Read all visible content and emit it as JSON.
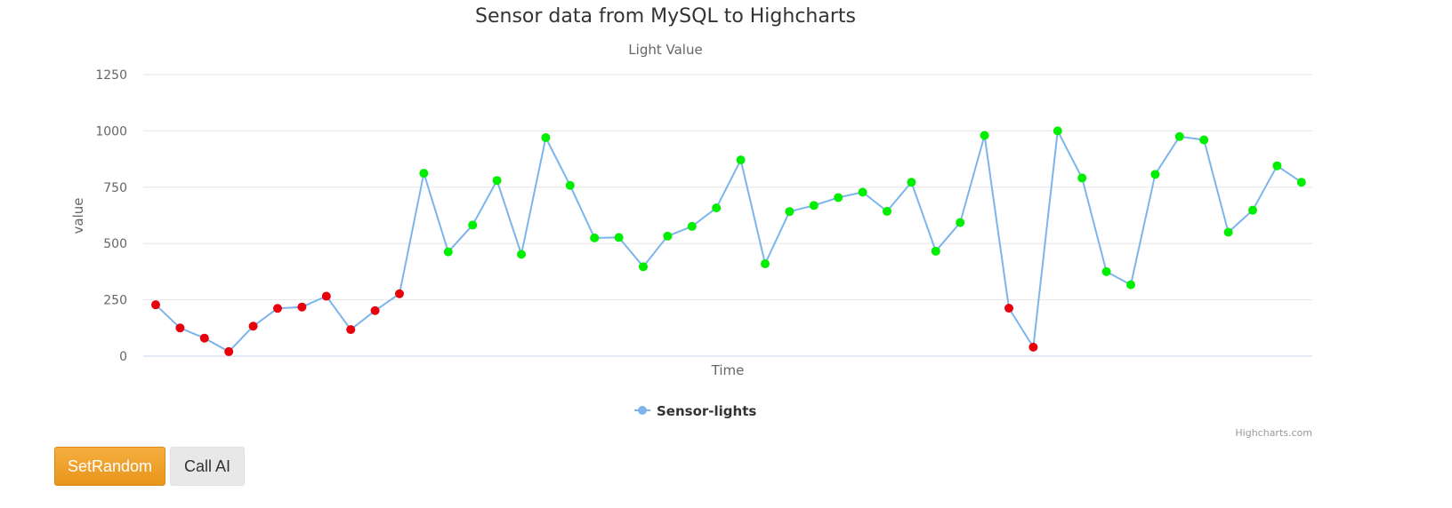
{
  "chart_data": {
    "type": "line",
    "title": "Sensor data from MySQL to Highcharts",
    "subtitle": "Light Value",
    "xlabel": "Time",
    "ylabel": "value",
    "ylim": [
      0,
      1250
    ],
    "yticks": [
      0,
      250,
      500,
      750,
      1000,
      1250
    ],
    "grid": true,
    "legend_position": "bottom-center",
    "threshold": 300,
    "colors": {
      "line": "#7cb5ec",
      "below_threshold": "#e8000b",
      "above_threshold": "#00ee00",
      "grid": "#e6e6e6",
      "axis": "#ccd6eb"
    },
    "series": [
      {
        "name": "Sensor-lights",
        "values": [
          228,
          125,
          80,
          20,
          133,
          212,
          218,
          266,
          118,
          202,
          277,
          812,
          463,
          582,
          780,
          452,
          970,
          758,
          525,
          527,
          397,
          533,
          576,
          658,
          871,
          410,
          642,
          669,
          704,
          728,
          643,
          772,
          466,
          593,
          980,
          213,
          40,
          1000,
          791,
          375,
          317,
          807,
          975,
          960,
          550,
          648,
          845,
          772
        ]
      }
    ],
    "credits": "Highcharts.com"
  },
  "buttons": {
    "set_random": "SetRandom",
    "call_ai": "Call AI"
  }
}
